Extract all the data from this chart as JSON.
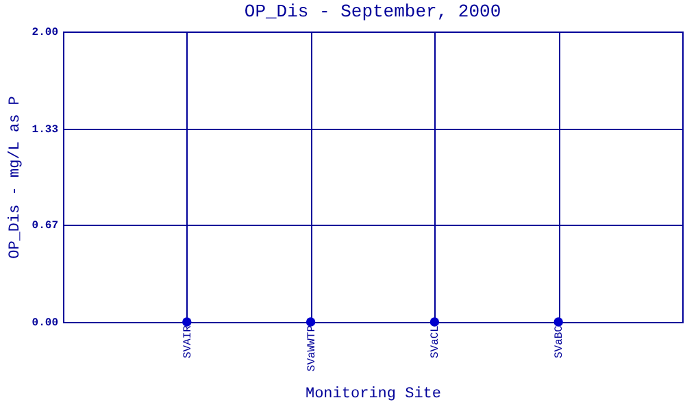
{
  "chart_data": {
    "type": "scatter",
    "title": "OP_Dis - September, 2000",
    "xlabel": "Monitoring Site",
    "ylabel": "OP_Dis - mg/L as P",
    "categories": [
      "SVAIR",
      "SVaWWTP",
      "SVaCL",
      "SVaBC"
    ],
    "series": [
      {
        "color": "#0000cc",
        "values": [
          0,
          0,
          0,
          0
        ]
      }
    ],
    "ylim": [
      0,
      2
    ],
    "yticks": [
      {
        "value": 0,
        "label": "0.00"
      },
      {
        "value": 0.67,
        "label": "0.67"
      },
      {
        "value": 1.33,
        "label": "1.33"
      },
      {
        "value": 2,
        "label": "2.00"
      }
    ],
    "grid": true,
    "marker": "circle"
  }
}
